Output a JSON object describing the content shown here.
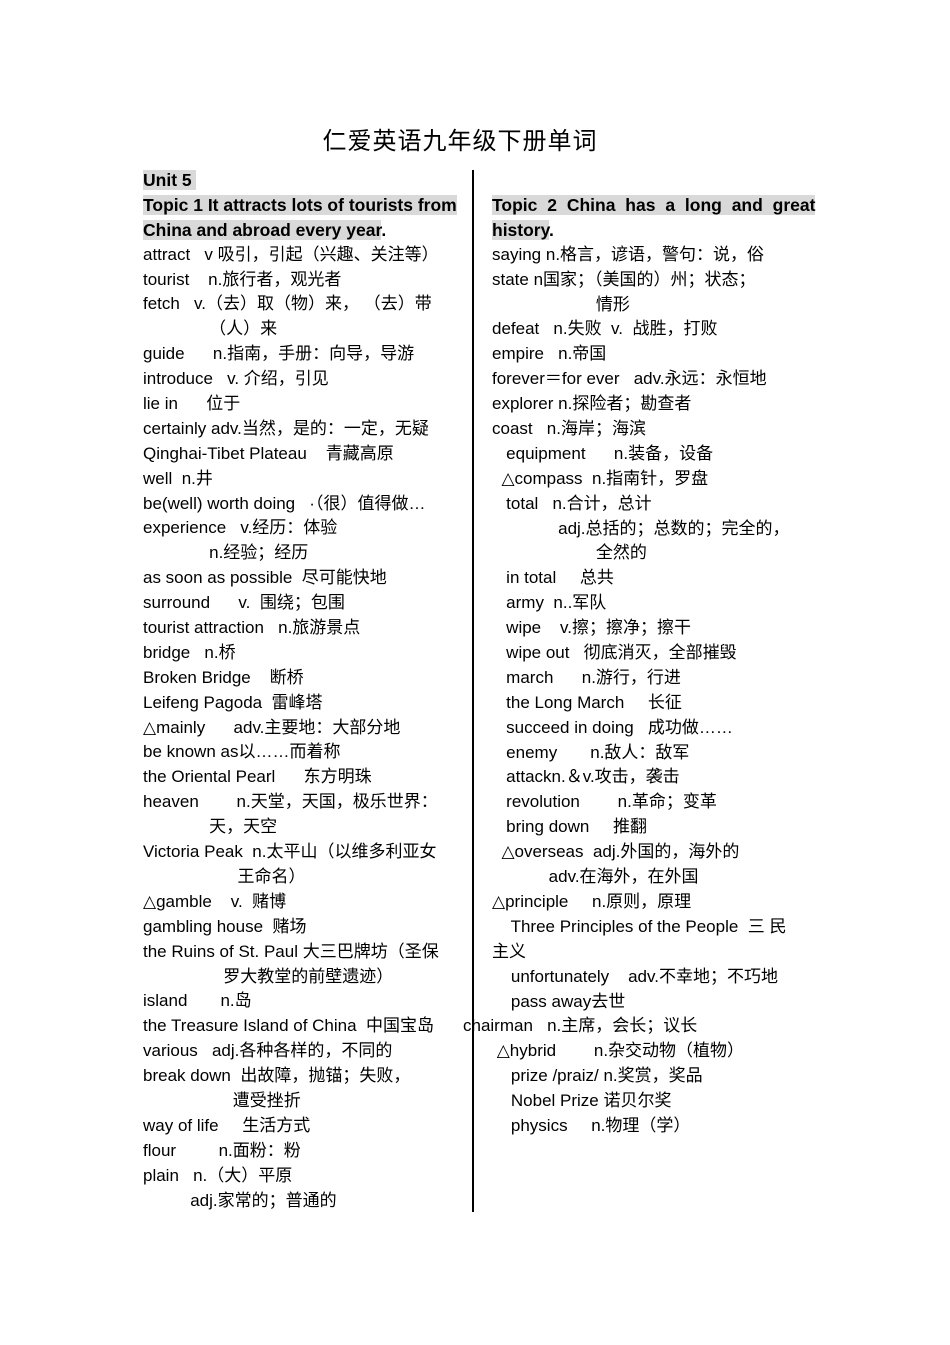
{
  "title": "仁爱英语九年级下册单词",
  "highlight_color": "#d9d9d9",
  "divider_color": "#000000",
  "left_column": {
    "lines": [
      {
        "t": "Unit 5 ",
        "h": true
      },
      {
        "t": "Topic 1 It attracts lots of tourists from",
        "h": true
      },
      {
        "t": "China and abroad every year",
        "h": true,
        "after": "."
      },
      {
        "t": "attract   v 吸引，引起（兴趣、关注等）"
      },
      {
        "t": "tourist    n.旅行者，观光者"
      },
      {
        "t": "fetch   v.（去）取（物）来， （去）带"
      },
      {
        "t": "              （人）来"
      },
      {
        "t": "guide      n.指南，手册：向导，导游"
      },
      {
        "t": "introduce   v. 介绍，引见"
      },
      {
        "t": "lie in      位于"
      },
      {
        "t": "certainly adv.当然，是的：一定，无疑"
      },
      {
        "t": "Qinghai-Tibet Plateau    青藏高原"
      },
      {
        "t": "well  n.井"
      },
      {
        "t": "be(well) worth doing   ·（很）值得做…"
      },
      {
        "t": "experience   v.经历：体验"
      },
      {
        "t": "              n.经验；经历"
      },
      {
        "t": "as soon as possible  尽可能快地"
      },
      {
        "t": "surround      v.  围绕；包围"
      },
      {
        "t": "tourist attraction   n.旅游景点"
      },
      {
        "t": "bridge   n.桥"
      },
      {
        "t": "Broken Bridge    断桥"
      },
      {
        "t": "Leifeng Pagoda  雷峰塔"
      },
      {
        "t": "△mainly      adv.主要地：大部分地"
      },
      {
        "t": "be known as以……而着称"
      },
      {
        "t": "the Oriental Pearl      东方明珠"
      },
      {
        "t": "heaven        n.天堂，天国，极乐世界："
      },
      {
        "t": "              天，天空"
      },
      {
        "t": "Victoria Peak  n.太平山（以维多利亚女"
      },
      {
        "t": "                    王命名）"
      },
      {
        "t": "△gamble    v.  赌博"
      },
      {
        "t": "gambling house  赌场"
      },
      {
        "t": "the Ruins of St. Paul 大三巴牌坊（圣保"
      },
      {
        "t": "                 罗大教堂的前壁遗迹）"
      },
      {
        "t": "island       n.岛"
      },
      {
        "t": "the Treasure Island of China  中国宝岛"
      },
      {
        "t": "various   adj.各种各样的，不同的"
      },
      {
        "t": "break down  出故障，抛锚；失败，"
      },
      {
        "t": "                   遭受挫折"
      },
      {
        "t": "way of life     生活方式"
      },
      {
        "t": "flour         n.面粉：粉"
      },
      {
        "t": "plain   n.（大）平原"
      },
      {
        "t": "          adj.家常的；普通的"
      }
    ]
  },
  "right_column": {
    "lines": [
      {
        "t": "Topic 2 China has a long and great",
        "h": true,
        "j": true
      },
      {
        "t": "history",
        "h": true,
        "after": "."
      },
      {
        "t": "saying n.格言，谚语，警句：说，俗"
      },
      {
        "t": "state n国家；（美国的）州；状态；"
      },
      {
        "t": "                      情形"
      },
      {
        "t": "defeat   n.失败  v.  战胜，打败"
      },
      {
        "t": "empire   n.帝国"
      },
      {
        "t": "forever＝for ever   adv.永远：永恒地"
      },
      {
        "t": "explorer n.探险者；勘查者"
      },
      {
        "t": "coast   n.海岸；海滨"
      },
      {
        "t": "   equipment      n.装备，设备"
      },
      {
        "t": "  △compass  n.指南针，罗盘"
      },
      {
        "t": "   total   n.合计，总计"
      },
      {
        "t": "              adj.总括的；总数的；完全的，"
      },
      {
        "t": "                      全然的"
      },
      {
        "t": "   in total     总共"
      },
      {
        "t": "   army  n..军队"
      },
      {
        "t": "   wipe    v.擦；擦净；擦干"
      },
      {
        "t": "   wipe out   彻底消灭，全部摧毁"
      },
      {
        "t": "   march      n.游行，行进"
      },
      {
        "t": "   the Long March     长征"
      },
      {
        "t": "   succeed in doing   成功做……"
      },
      {
        "t": "   enemy       n.敌人：敌军"
      },
      {
        "t": "   attackn.＆v.攻击，袭击"
      },
      {
        "t": "   revolution        n.革命；变革"
      },
      {
        "t": "   bring down     推翻"
      },
      {
        "t": "  △overseas  adj.外国的，海外的"
      },
      {
        "t": "            adv.在海外，在外国"
      },
      {
        "t": "△principle     n.原则，原理"
      },
      {
        "t": "    Three Principles of the People  三 民"
      },
      {
        "t": "主义"
      },
      {
        "t": "    unfortunately    adv.不幸地；不巧地"
      },
      {
        "t": "    pass away去世"
      },
      {
        "t": "chairman   n.主席，会长；议长",
        "hang": true
      },
      {
        "t": " △hybrid        n.杂交动物（植物）"
      },
      {
        "t": "    prize /praiz/ n.奖赏，奖品"
      },
      {
        "t": "    Nobel Prize 诺贝尔奖"
      },
      {
        "t": "    physics     n.物理（学）"
      }
    ]
  }
}
